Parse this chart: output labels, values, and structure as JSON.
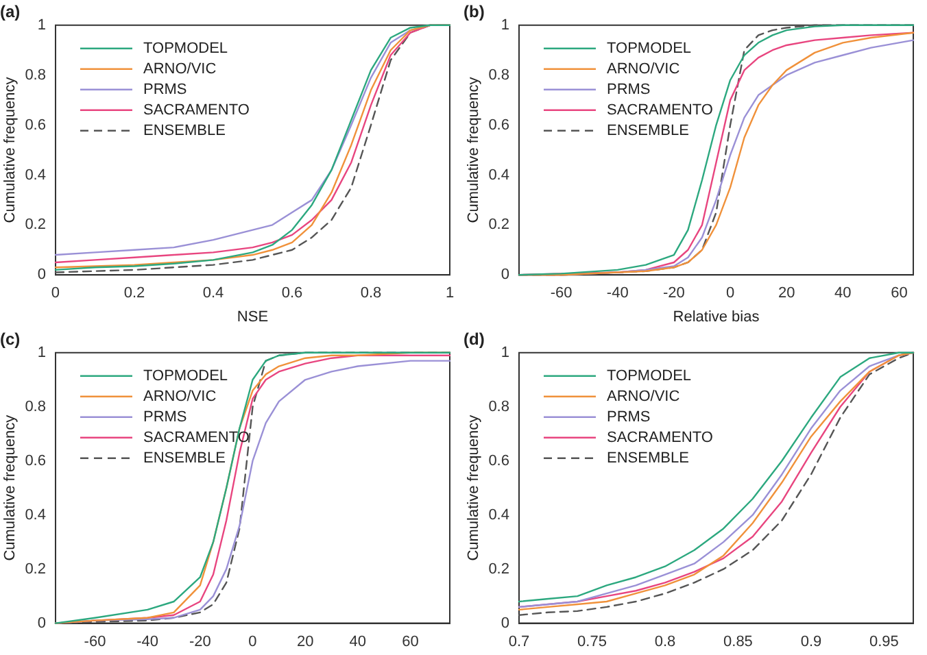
{
  "chart_data": [
    {
      "type": "line",
      "title": "(a)",
      "xlabel": "NSE",
      "ylabel": "Cumulative frequency",
      "legend": "top left",
      "grid": false,
      "marker": "none",
      "x": [
        0,
        0.1,
        0.2,
        0.3,
        0.4,
        0.5,
        0.55,
        0.6,
        0.65,
        0.7,
        0.75,
        0.8,
        0.85,
        0.9,
        0.95,
        1
      ],
      "xlim": [
        0,
        1
      ],
      "xticks": [
        0,
        0.2,
        0.4,
        0.6,
        0.8,
        1
      ],
      "ylim": [
        0,
        1
      ],
      "yticks": [
        0,
        0.2,
        0.4,
        0.6,
        0.8,
        1
      ],
      "series": [
        {
          "name": "TOPMODEL",
          "color": "#2ca87f",
          "line_style": "solid",
          "values": [
            0.02,
            0.03,
            0.035,
            0.045,
            0.06,
            0.09,
            0.12,
            0.18,
            0.28,
            0.42,
            0.62,
            0.82,
            0.95,
            0.99,
            1,
            1
          ]
        },
        {
          "name": "ARNO/VIC",
          "color": "#f0913a",
          "line_style": "solid",
          "values": [
            0.03,
            0.035,
            0.04,
            0.05,
            0.06,
            0.08,
            0.1,
            0.13,
            0.2,
            0.33,
            0.52,
            0.74,
            0.9,
            0.98,
            1,
            1
          ]
        },
        {
          "name": "PRMS",
          "color": "#9a90d6",
          "line_style": "solid",
          "values": [
            0.08,
            0.09,
            0.1,
            0.11,
            0.14,
            0.18,
            0.2,
            0.25,
            0.3,
            0.42,
            0.6,
            0.79,
            0.93,
            0.98,
            1,
            1
          ]
        },
        {
          "name": "SACRAMENTO",
          "color": "#e8457f",
          "line_style": "solid",
          "values": [
            0.05,
            0.06,
            0.07,
            0.08,
            0.09,
            0.11,
            0.13,
            0.16,
            0.22,
            0.3,
            0.45,
            0.68,
            0.88,
            0.97,
            1,
            1
          ]
        },
        {
          "name": "ENSEMBLE",
          "color": "#555555",
          "line_style": "dashed",
          "values": [
            0.01,
            0.015,
            0.02,
            0.03,
            0.04,
            0.06,
            0.08,
            0.1,
            0.15,
            0.22,
            0.35,
            0.6,
            0.86,
            0.97,
            1,
            1
          ]
        }
      ]
    },
    {
      "type": "line",
      "title": "(b)",
      "xlabel": "Relative bias",
      "ylabel": "Cumulative frequency",
      "legend": "top left",
      "grid": false,
      "marker": "none",
      "x": [
        -75,
        -60,
        -40,
        -30,
        -20,
        -15,
        -10,
        -5,
        0,
        5,
        10,
        15,
        20,
        30,
        40,
        50,
        65
      ],
      "xlim": [
        -75,
        65
      ],
      "xticks": [
        -60,
        -40,
        -20,
        0,
        20,
        40,
        60
      ],
      "ylim": [
        0,
        1
      ],
      "yticks": [
        0,
        0.2,
        0.4,
        0.6,
        0.8,
        1
      ],
      "series": [
        {
          "name": "TOPMODEL",
          "color": "#2ca87f",
          "line_style": "solid",
          "values": [
            0,
            0.005,
            0.02,
            0.04,
            0.08,
            0.18,
            0.38,
            0.6,
            0.78,
            0.88,
            0.93,
            0.96,
            0.98,
            0.995,
            1,
            1,
            1
          ]
        },
        {
          "name": "ARNO/VIC",
          "color": "#f0913a",
          "line_style": "solid",
          "values": [
            0,
            0,
            0.01,
            0.015,
            0.03,
            0.05,
            0.1,
            0.2,
            0.35,
            0.55,
            0.68,
            0.76,
            0.82,
            0.89,
            0.93,
            0.95,
            0.97
          ]
        },
        {
          "name": "PRMS",
          "color": "#9a90d6",
          "line_style": "solid",
          "values": [
            0,
            0,
            0.01,
            0.02,
            0.035,
            0.07,
            0.15,
            0.3,
            0.48,
            0.63,
            0.72,
            0.76,
            0.8,
            0.85,
            0.88,
            0.91,
            0.94
          ]
        },
        {
          "name": "SACRAMENTO",
          "color": "#e8457f",
          "line_style": "solid",
          "values": [
            0,
            0.005,
            0.01,
            0.02,
            0.05,
            0.1,
            0.2,
            0.45,
            0.7,
            0.82,
            0.87,
            0.9,
            0.92,
            0.94,
            0.95,
            0.96,
            0.97
          ]
        },
        {
          "name": "ENSEMBLE",
          "color": "#555555",
          "line_style": "dashed",
          "values": [
            0,
            0,
            0.01,
            0.015,
            0.03,
            0.05,
            0.1,
            0.25,
            0.6,
            0.9,
            0.96,
            0.98,
            0.99,
            1,
            1,
            1,
            1
          ]
        }
      ]
    },
    {
      "type": "line",
      "title": "(c)",
      "ylabel": "Cumulative frequency",
      "legend": "top left",
      "grid": false,
      "marker": "none",
      "x": [
        -75,
        -60,
        -40,
        -30,
        -20,
        -15,
        -10,
        -5,
        0,
        5,
        10,
        20,
        30,
        40,
        60,
        75
      ],
      "xlim": [
        -75,
        75
      ],
      "xticks": [
        -60,
        -40,
        -20,
        0,
        20,
        40,
        60
      ],
      "ylim": [
        0,
        1
      ],
      "yticks": [
        0,
        0.2,
        0.4,
        0.6,
        0.8,
        1
      ],
      "series": [
        {
          "name": "TOPMODEL",
          "color": "#2ca87f",
          "line_style": "solid",
          "values": [
            0,
            0.02,
            0.05,
            0.08,
            0.17,
            0.3,
            0.5,
            0.72,
            0.9,
            0.97,
            0.99,
            1,
            1,
            1,
            1,
            1
          ]
        },
        {
          "name": "ARNO/VIC",
          "color": "#f0913a",
          "line_style": "solid",
          "values": [
            0,
            0.01,
            0.02,
            0.04,
            0.14,
            0.3,
            0.5,
            0.72,
            0.86,
            0.92,
            0.95,
            0.98,
            0.99,
            0.99,
            1,
            1
          ]
        },
        {
          "name": "PRMS",
          "color": "#9a90d6",
          "line_style": "solid",
          "values": [
            0,
            0.01,
            0.015,
            0.02,
            0.05,
            0.1,
            0.2,
            0.36,
            0.6,
            0.74,
            0.82,
            0.9,
            0.93,
            0.95,
            0.97,
            0.97
          ]
        },
        {
          "name": "SACRAMENTO",
          "color": "#e8457f",
          "line_style": "solid",
          "values": [
            0,
            0.01,
            0.02,
            0.03,
            0.08,
            0.18,
            0.38,
            0.63,
            0.83,
            0.9,
            0.93,
            0.96,
            0.98,
            0.99,
            0.99,
            0.99
          ]
        },
        {
          "name": "ENSEMBLE",
          "color": "#555555",
          "line_style": "dashed",
          "values": [
            0,
            0.005,
            0.01,
            0.02,
            0.04,
            0.07,
            0.15,
            0.35,
            0.8,
            0.97,
            0.99,
            1,
            1,
            1,
            1,
            1
          ]
        }
      ]
    },
    {
      "type": "line",
      "title": "(d)",
      "ylabel": "Cumulative frequency",
      "legend": "top left",
      "grid": false,
      "marker": "none",
      "x": [
        0.7,
        0.72,
        0.74,
        0.76,
        0.78,
        0.8,
        0.82,
        0.84,
        0.86,
        0.88,
        0.9,
        0.92,
        0.94,
        0.96,
        0.97
      ],
      "xlim": [
        0.7,
        0.97
      ],
      "xticks": [
        0.7,
        0.75,
        0.8,
        0.85,
        0.9,
        0.95
      ],
      "ylim": [
        0,
        1
      ],
      "yticks": [
        0,
        0.2,
        0.4,
        0.6,
        0.8,
        1
      ],
      "series": [
        {
          "name": "TOPMODEL",
          "color": "#2ca87f",
          "line_style": "solid",
          "values": [
            0.08,
            0.09,
            0.1,
            0.14,
            0.17,
            0.21,
            0.27,
            0.35,
            0.46,
            0.6,
            0.76,
            0.91,
            0.98,
            1,
            1
          ]
        },
        {
          "name": "ARNO/VIC",
          "color": "#f0913a",
          "line_style": "solid",
          "values": [
            0.05,
            0.06,
            0.07,
            0.08,
            0.11,
            0.14,
            0.18,
            0.25,
            0.37,
            0.52,
            0.69,
            0.82,
            0.93,
            0.99,
            1
          ]
        },
        {
          "name": "PRMS",
          "color": "#9a90d6",
          "line_style": "solid",
          "values": [
            0.06,
            0.07,
            0.08,
            0.11,
            0.14,
            0.18,
            0.22,
            0.3,
            0.4,
            0.55,
            0.72,
            0.86,
            0.95,
            0.99,
            1
          ]
        },
        {
          "name": "SACRAMENTO",
          "color": "#e8457f",
          "line_style": "solid",
          "values": [
            0.06,
            0.07,
            0.08,
            0.1,
            0.12,
            0.15,
            0.19,
            0.24,
            0.32,
            0.45,
            0.63,
            0.8,
            0.93,
            0.99,
            1
          ]
        },
        {
          "name": "ENSEMBLE",
          "color": "#555555",
          "line_style": "dashed",
          "values": [
            0.03,
            0.04,
            0.045,
            0.06,
            0.08,
            0.11,
            0.15,
            0.2,
            0.27,
            0.38,
            0.55,
            0.76,
            0.92,
            0.98,
            1
          ]
        }
      ]
    }
  ]
}
